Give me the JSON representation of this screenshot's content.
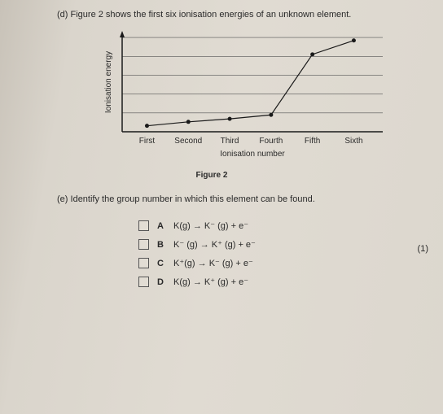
{
  "questionD": {
    "label": "(d)",
    "text": "Figure 2 shows the first six ionisation energies of an unknown element."
  },
  "chart": {
    "type": "line",
    "yLabel": "Ionisation energy",
    "xLabel": "Ionisation number",
    "xTicks": [
      "First",
      "Second",
      "Third",
      "Fourth",
      "Fifth",
      "Sixth"
    ],
    "points": [
      {
        "x": 0,
        "y": 0.06
      },
      {
        "x": 1,
        "y": 0.1
      },
      {
        "x": 2,
        "y": 0.13
      },
      {
        "x": 3,
        "y": 0.17
      },
      {
        "x": 4,
        "y": 0.78
      },
      {
        "x": 5,
        "y": 0.92
      }
    ],
    "gridLines": 5,
    "lineColor": "#1a1a1a",
    "pointColor": "#1a1a1a",
    "gridColor": "#555555",
    "axisColor": "#1a1a1a",
    "pointRadius": 2.5,
    "lineWidth": 1.2,
    "background": "transparent"
  },
  "caption": "Figure 2",
  "questionE": {
    "label": "(e)",
    "text": "Identify the group number in which this element can be found."
  },
  "marks": "(1)",
  "options": [
    {
      "letter": "A",
      "eq": "K(g) → K⁻ (g) + e⁻"
    },
    {
      "letter": "B",
      "eq": "K⁻ (g) → K⁺ (g) + e⁻"
    },
    {
      "letter": "C",
      "eq": "K⁺(g) → K⁻ (g) + e⁻"
    },
    {
      "letter": "D",
      "eq": "K(g) → K⁺ (g) + e⁻"
    }
  ]
}
